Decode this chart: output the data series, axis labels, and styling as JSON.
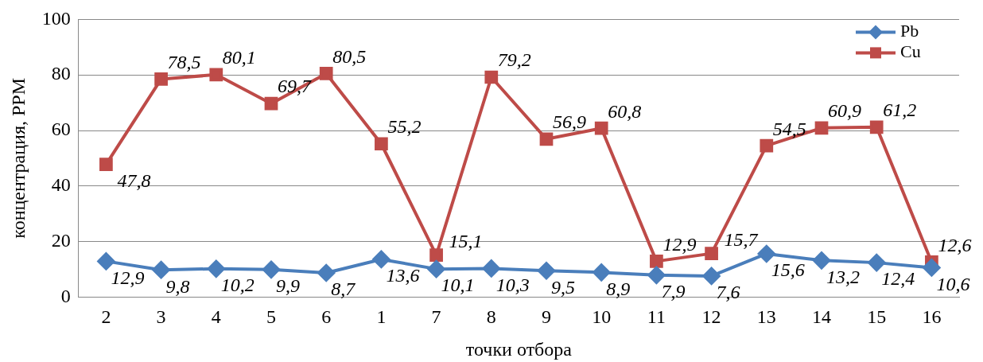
{
  "chart_data": {
    "type": "line",
    "xlabel": "точки отбора",
    "ylabel": "концентрация, PPM",
    "categories": [
      "2",
      "3",
      "4",
      "5",
      "6",
      "1",
      "7",
      "8",
      "9",
      "10",
      "11",
      "12",
      "13",
      "14",
      "15",
      "16"
    ],
    "series": [
      {
        "name": "Pb",
        "color": "#4a7ebb",
        "marker": "diamond",
        "values": [
          12.9,
          9.8,
          10.2,
          9.9,
          8.7,
          13.6,
          10.1,
          10.3,
          9.5,
          8.9,
          7.9,
          7.6,
          15.6,
          13.2,
          12.4,
          10.6
        ],
        "value_labels": [
          "12,9",
          "9,8",
          "10,2",
          "9,9",
          "8,7",
          "13,6",
          "10,1",
          "10,3",
          "9,5",
          "8,9",
          "7,9",
          "7,6",
          "15,6",
          "13,2",
          "12,4",
          "10,6"
        ]
      },
      {
        "name": "Cu",
        "color": "#be4b48",
        "marker": "square",
        "values": [
          47.8,
          78.5,
          80.1,
          69.7,
          80.5,
          55.2,
          15.1,
          79.2,
          56.9,
          60.8,
          12.9,
          15.7,
          54.5,
          60.9,
          61.2,
          12.6
        ],
        "value_labels": [
          "47,8",
          "78,5",
          "80,1",
          "69,7",
          "80,5",
          "55,2",
          "15,1",
          "79,2",
          "56,9",
          "60,8",
          "12,9",
          "15,7",
          "54,5",
          "60,9",
          "61,2",
          "12,6"
        ]
      }
    ],
    "ylim": [
      0,
      100
    ],
    "yticks": [
      0,
      20,
      40,
      60,
      80,
      100
    ],
    "grid": "y",
    "legend": "top right"
  }
}
